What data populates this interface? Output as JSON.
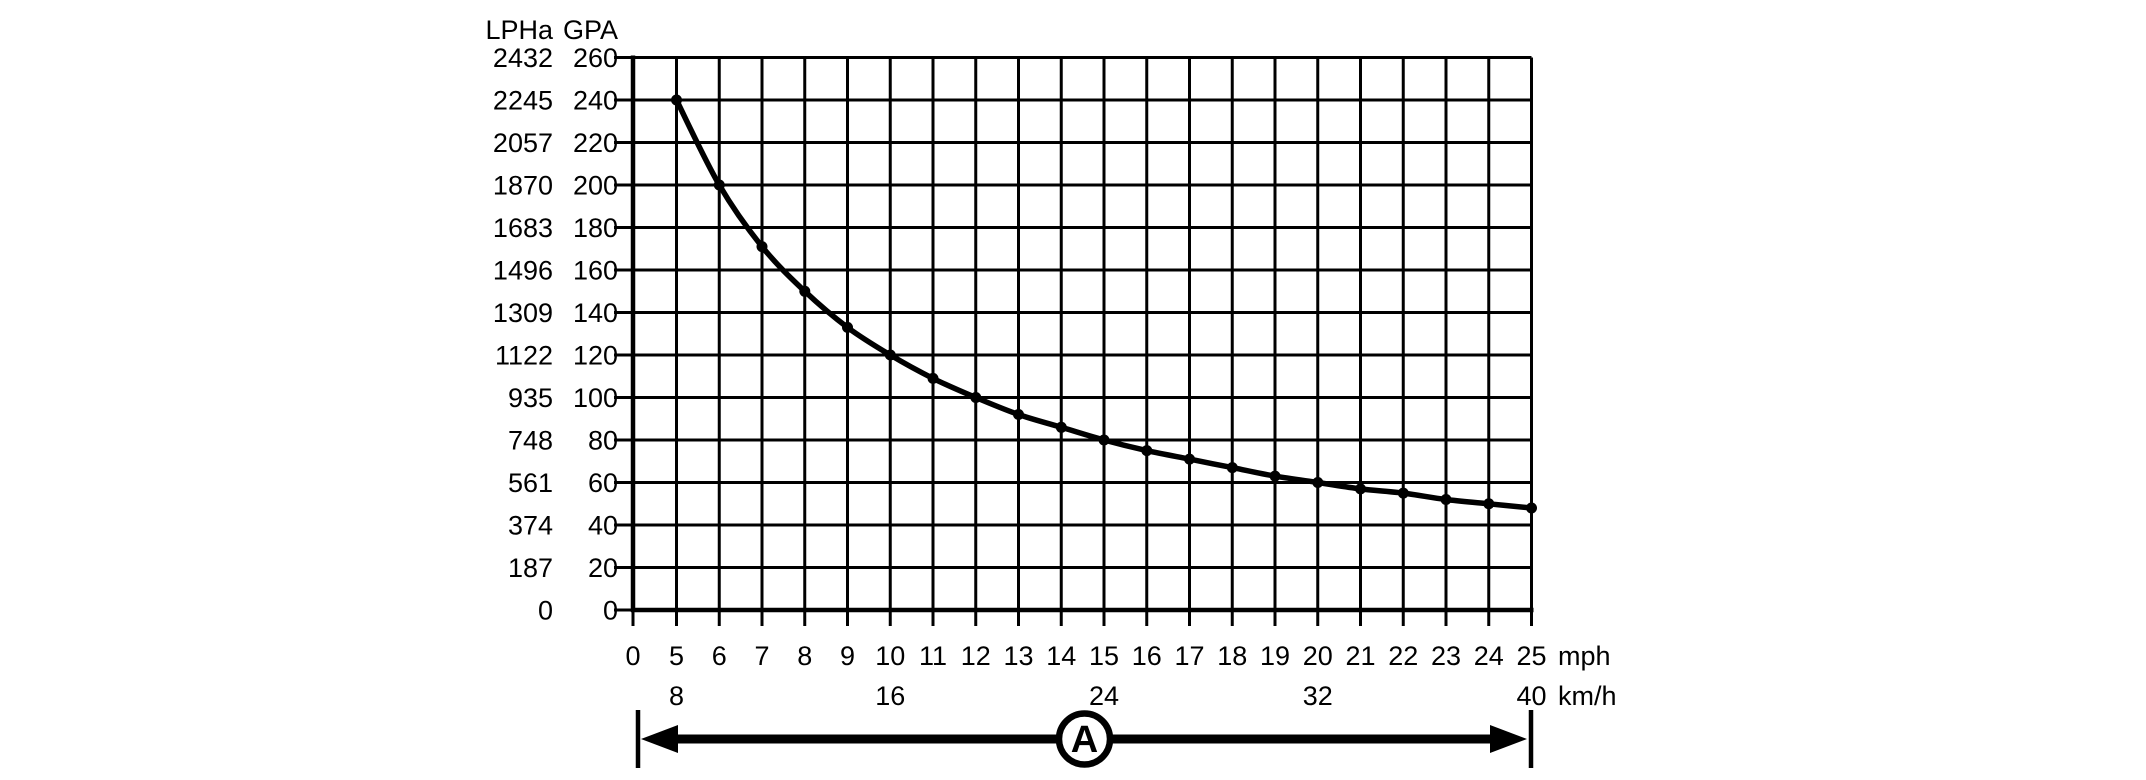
{
  "page": {
    "background": "#ffffff",
    "ink": "#000000"
  },
  "chart_data": {
    "type": "line",
    "grid": true,
    "x": [
      5,
      6,
      7,
      8,
      9,
      10,
      11,
      12,
      13,
      14,
      15,
      16,
      17,
      18,
      19,
      20,
      21,
      22,
      23,
      24,
      25
    ],
    "series": [
      {
        "name": "application-rate-gpa",
        "values": [
          240,
          200,
          171,
          150,
          133,
          120,
          109,
          100,
          92,
          86,
          80,
          75,
          71,
          67,
          63,
          60,
          57,
          55,
          52,
          50,
          48
        ],
        "marker": "filled-circle",
        "color": "#000000"
      }
    ],
    "x_axis": {
      "primary_unit": "mph",
      "secondary_unit": "km/h",
      "primary_tick_labels": [
        "0",
        "5",
        "6",
        "7",
        "8",
        "9",
        "10",
        "11",
        "12",
        "13",
        "14",
        "15",
        "16",
        "17",
        "18",
        "19",
        "20",
        "21",
        "22",
        "23",
        "24",
        "25"
      ],
      "primary_tick_values": [
        0,
        5,
        6,
        7,
        8,
        9,
        10,
        11,
        12,
        13,
        14,
        15,
        16,
        17,
        18,
        19,
        20,
        21,
        22,
        23,
        24,
        25
      ],
      "secondary_ticks": [
        {
          "label": "8",
          "at_mph": 5
        },
        {
          "label": "16",
          "at_mph": 10
        },
        {
          "label": "24",
          "at_mph": 15
        },
        {
          "label": "32",
          "at_mph": 20
        },
        {
          "label": "40",
          "at_mph": 25
        }
      ],
      "range_mph": [
        0,
        25
      ]
    },
    "y_axis": {
      "left_scale_header": "LPHa",
      "right_scale_header": "GPA",
      "gpa_range": [
        0,
        260
      ],
      "tick_rows": [
        {
          "lpha": "2432",
          "gpa": "260"
        },
        {
          "lpha": "2245",
          "gpa": "240"
        },
        {
          "lpha": "2057",
          "gpa": "220"
        },
        {
          "lpha": "1870",
          "gpa": "200"
        },
        {
          "lpha": "1683",
          "gpa": "180"
        },
        {
          "lpha": "1496",
          "gpa": "160"
        },
        {
          "lpha": "1309",
          "gpa": "140"
        },
        {
          "lpha": "1122",
          "gpa": "120"
        },
        {
          "lpha": "935",
          "gpa": "100"
        },
        {
          "lpha": "748",
          "gpa": "80"
        },
        {
          "lpha": "561",
          "gpa": "60"
        },
        {
          "lpha": "374",
          "gpa": "40"
        },
        {
          "lpha": "187",
          "gpa": "20"
        },
        {
          "lpha": "0",
          "gpa": "0"
        }
      ]
    },
    "annotation": {
      "label": "A"
    }
  }
}
